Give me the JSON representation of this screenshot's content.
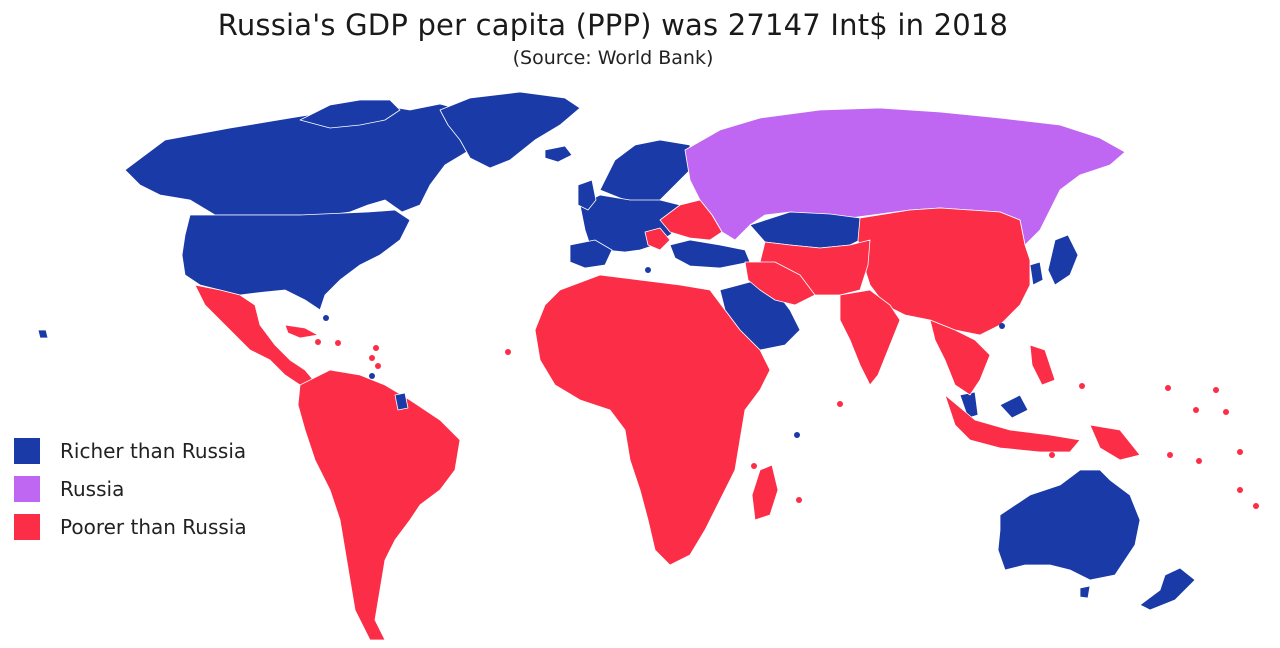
{
  "header": {
    "title": "Russia's GDP per capita (PPP) was 27147 Int$ in 2018",
    "subtitle": "(Source: World Bank)"
  },
  "colors": {
    "richer": "#1a3aa8",
    "russia": "#bf67f2",
    "poorer": "#fc2d47",
    "border": "#ffffff"
  },
  "legend": {
    "items": [
      {
        "key": "richer",
        "label": "Richer than Russia"
      },
      {
        "key": "russia",
        "label": "Russia"
      },
      {
        "key": "poorer",
        "label": "Poorer than Russia"
      }
    ]
  }
}
